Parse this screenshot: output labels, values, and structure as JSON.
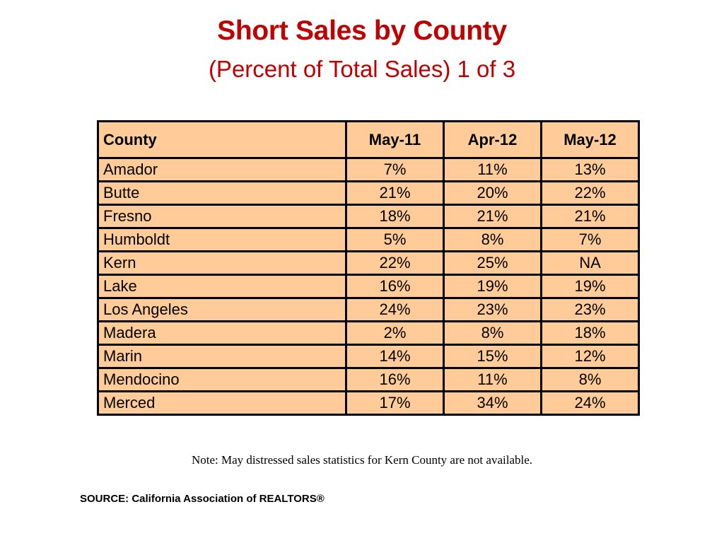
{
  "title": "Short Sales by County",
  "subtitle": "(Percent of Total Sales) 1 of 3",
  "table": {
    "headers": [
      "County",
      "May-11",
      "Apr-12",
      "May-12"
    ],
    "rows": [
      [
        "Amador",
        "7%",
        "11%",
        "13%"
      ],
      [
        "Butte",
        "21%",
        "20%",
        "22%"
      ],
      [
        "Fresno",
        "18%",
        "21%",
        "21%"
      ],
      [
        "Humboldt",
        "5%",
        "8%",
        "7%"
      ],
      [
        "Kern",
        "22%",
        "25%",
        "NA"
      ],
      [
        "Lake",
        "16%",
        "19%",
        "19%"
      ],
      [
        "Los Angeles",
        "24%",
        "23%",
        "23%"
      ],
      [
        "Madera",
        "2%",
        "8%",
        "18%"
      ],
      [
        "Marin",
        "14%",
        "15%",
        "12%"
      ],
      [
        "Mendocino",
        "16%",
        "11%",
        "8%"
      ],
      [
        "Merced",
        "17%",
        "34%",
        "24%"
      ]
    ]
  },
  "note": "Note: May distressed sales statistics for Kern County are not available.",
  "source": "SOURCE: California Association of REALTORS®",
  "colors": {
    "title": "#c00000",
    "table_fill": "#ffcc99",
    "border": "#000000"
  }
}
